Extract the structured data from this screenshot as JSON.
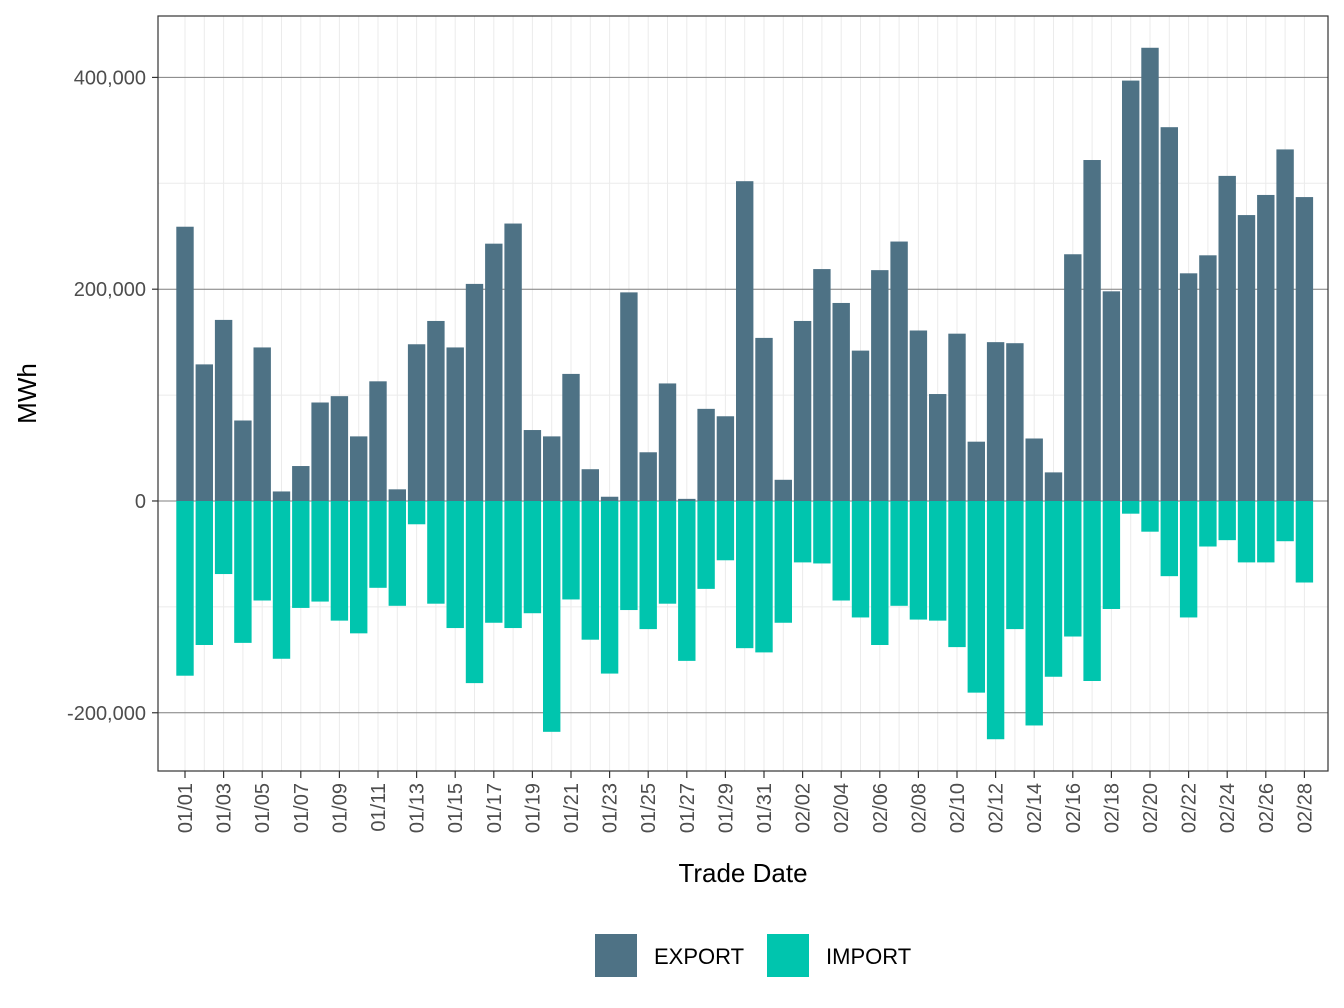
{
  "chart_data": {
    "type": "bar",
    "stacked": true,
    "xlabel": "Trade Date",
    "ylabel": "MWh",
    "ylim": [
      -255000,
      458000
    ],
    "yticks": [
      -200000,
      0,
      200000,
      400000
    ],
    "ytick_labels": [
      "-200,000",
      "0",
      "200,000",
      "400,000"
    ],
    "grid": true,
    "legend_position": "bottom",
    "categories": [
      "01/01",
      "01/02",
      "01/03",
      "01/04",
      "01/05",
      "01/06",
      "01/07",
      "01/08",
      "01/09",
      "01/10",
      "01/11",
      "01/12",
      "01/13",
      "01/14",
      "01/15",
      "01/16",
      "01/17",
      "01/18",
      "01/19",
      "01/20",
      "01/21",
      "01/22",
      "01/23",
      "01/24",
      "01/25",
      "01/26",
      "01/27",
      "01/28",
      "01/29",
      "01/30",
      "01/31",
      "02/01",
      "02/02",
      "02/03",
      "02/04",
      "02/05",
      "02/06",
      "02/07",
      "02/08",
      "02/09",
      "02/10",
      "02/11",
      "02/12",
      "02/13",
      "02/14",
      "02/15",
      "02/16",
      "02/17",
      "02/18",
      "02/19",
      "02/20",
      "02/21",
      "02/22",
      "02/23",
      "02/24",
      "02/25",
      "02/26",
      "02/27",
      "02/28"
    ],
    "series": [
      {
        "name": "EXPORT",
        "color": "#4e7285",
        "values": [
          259000,
          129000,
          171000,
          76000,
          145000,
          9000,
          33000,
          93000,
          99000,
          61000,
          113000,
          11000,
          148000,
          170000,
          145000,
          205000,
          243000,
          262000,
          67000,
          61000,
          120000,
          30000,
          4000,
          197000,
          46000,
          111000,
          2000,
          87000,
          80000,
          302000,
          154000,
          20000,
          170000,
          219000,
          187000,
          142000,
          218000,
          245000,
          161000,
          101000,
          158000,
          56000,
          150000,
          149000,
          59000,
          27000,
          233000,
          322000,
          198000,
          397000,
          428000,
          353000,
          215000,
          232000,
          307000,
          270000,
          289000,
          332000,
          287000
        ]
      },
      {
        "name": "IMPORT",
        "color": "#00c5ae",
        "values": [
          -165000,
          -136000,
          -69000,
          -134000,
          -94000,
          -149000,
          -101000,
          -95000,
          -113000,
          -125000,
          -82000,
          -99000,
          -22000,
          -97000,
          -120000,
          -172000,
          -115000,
          -120000,
          -106000,
          -218000,
          -93000,
          -131000,
          -163000,
          -103000,
          -121000,
          -97000,
          -151000,
          -83000,
          -56000,
          -139000,
          -143000,
          -115000,
          -58000,
          -59000,
          -94000,
          -110000,
          -136000,
          -99000,
          -112000,
          -113000,
          -138000,
          -181000,
          -225000,
          -121000,
          -212000,
          -166000,
          -128000,
          -170000,
          -102000,
          -12000,
          -29000,
          -71000,
          -110000,
          -43000,
          -37000,
          -58000,
          -58000,
          -38000,
          -77000
        ]
      }
    ],
    "xtick_labels": [
      "01/01",
      "01/03",
      "01/05",
      "01/07",
      "01/09",
      "01/11",
      "01/13",
      "01/15",
      "01/17",
      "01/19",
      "01/21",
      "01/23",
      "01/25",
      "01/27",
      "01/29",
      "01/31",
      "02/02",
      "02/04",
      "02/06",
      "02/08",
      "02/10",
      "02/12",
      "02/14",
      "02/16",
      "02/18",
      "02/20",
      "02/22",
      "02/24",
      "02/26",
      "02/28"
    ]
  }
}
